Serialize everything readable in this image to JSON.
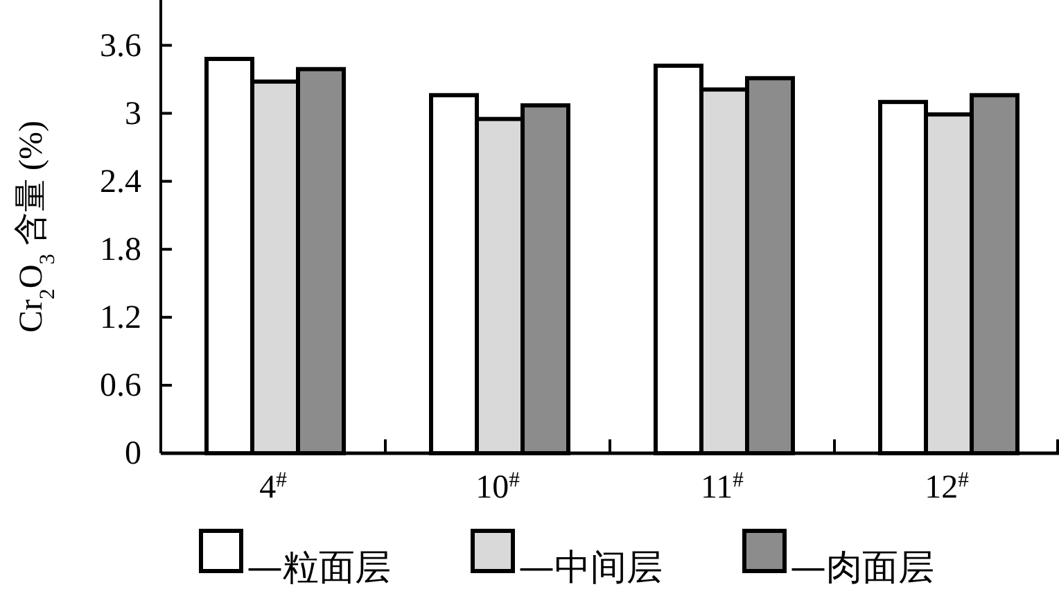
{
  "chart_data": {
    "type": "bar",
    "ylabel": "Cr$_{2}$O$_{3}$ 含量 (%)",
    "categories": [
      "4$^{#}$",
      "10$^{#}$",
      "11$^{#}$",
      "12$^{#}$"
    ],
    "series": [
      {
        "name": "—粒面层",
        "color": "#ffffff",
        "values": [
          3.48,
          3.16,
          3.42,
          3.1
        ]
      },
      {
        "name": "—中间层",
        "color": "#d9d9d9",
        "values": [
          3.28,
          2.95,
          3.21,
          2.99
        ]
      },
      {
        "name": "—肉面层",
        "color": "#8c8c8c",
        "values": [
          3.39,
          3.07,
          3.31,
          3.16
        ]
      }
    ],
    "ylim": [
      0,
      4.0
    ],
    "yticks": [
      0,
      0.6,
      1.2,
      1.8,
      2.4,
      3,
      3.6
    ],
    "grid": false,
    "legend": "bottom"
  }
}
